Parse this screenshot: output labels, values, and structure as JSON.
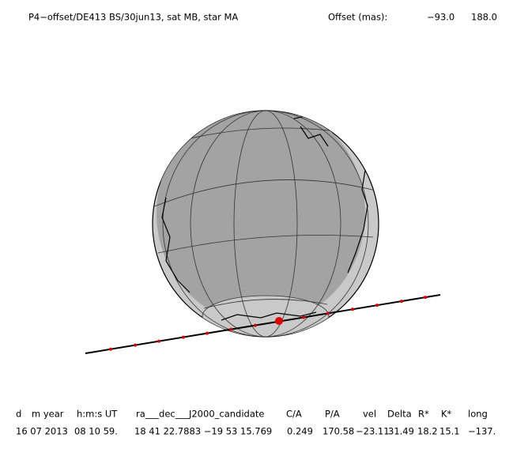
{
  "header": {
    "title": "P4−offset/DE413 BS/30jun13, sat MB, star MA",
    "offset_label": "Offset (mas):",
    "offset_values": [
      "−93.0",
      "188.0"
    ]
  },
  "table": {
    "headers": [
      "d",
      "m year",
      "h:m:s UT",
      "ra___dec___J2000_candidate",
      "C/A",
      "P/A",
      "vel",
      "Delta",
      "R*",
      "K*",
      "long"
    ],
    "rows": [
      [
        "16 07 2013",
        "08 10 59.",
        "18 41 22.7883 −19 53 15.769",
        "0.249",
        "170.58",
        "−23.11",
        "31.49",
        "18.2",
        "15.1",
        "−137."
      ]
    ]
  }
}
